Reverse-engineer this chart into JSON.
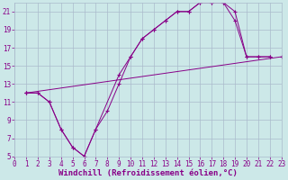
{
  "xlabel": "Windchill (Refroidissement éolien,°C)",
  "background_color": "#cce8e8",
  "grid_color": "#aabbcc",
  "line_color": "#880088",
  "marker": "+",
  "xlim": [
    0,
    23
  ],
  "ylim": [
    5,
    22
  ],
  "xticks": [
    0,
    1,
    2,
    3,
    4,
    5,
    6,
    7,
    8,
    9,
    10,
    11,
    12,
    13,
    14,
    15,
    16,
    17,
    18,
    19,
    20,
    21,
    22,
    23
  ],
  "yticks": [
    5,
    7,
    9,
    11,
    13,
    15,
    17,
    19,
    21
  ],
  "series": [
    {
      "x": [
        1,
        2,
        3,
        4,
        5,
        6,
        7,
        8,
        9,
        10,
        11,
        12,
        13,
        14,
        15,
        16,
        17,
        18,
        19,
        20,
        21,
        22
      ],
      "y": [
        12,
        12,
        11,
        8,
        6,
        5,
        8,
        10,
        13,
        16,
        18,
        19,
        20,
        21,
        21,
        22,
        22,
        22,
        20,
        16,
        16,
        16
      ]
    },
    {
      "x": [
        1,
        2,
        3,
        4,
        5,
        6,
        7,
        9,
        10,
        11,
        12,
        13,
        14,
        15,
        16,
        17,
        18,
        19,
        20,
        21,
        22
      ],
      "y": [
        12,
        12,
        11,
        8,
        6,
        5,
        8,
        14,
        16,
        18,
        19,
        20,
        21,
        21,
        22,
        22,
        22,
        21,
        16,
        16,
        16
      ]
    },
    {
      "x": [
        1,
        23
      ],
      "y": [
        12,
        16
      ]
    }
  ],
  "tick_fontsize": 5.5,
  "label_fontsize": 6.5
}
